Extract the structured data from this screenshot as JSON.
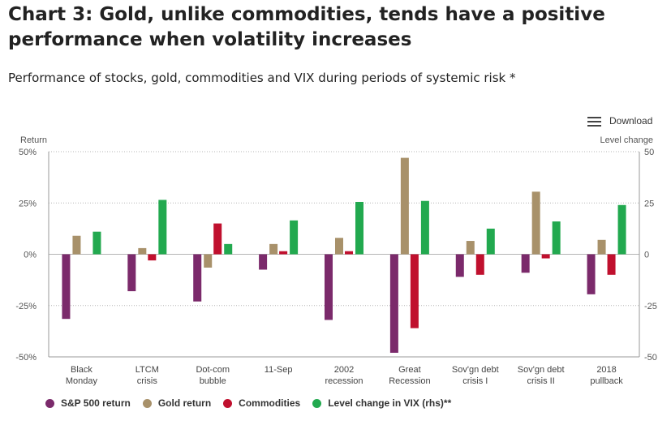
{
  "header": {
    "title": "Chart 3: Gold, unlike commodities, tends have a positive performance when volatility increases",
    "subtitle": "Performance of stocks, gold, commodities and VIX during periods of systemic risk *"
  },
  "toolbar": {
    "download_label": "Download",
    "download_icon": "menu-icon"
  },
  "chart_data": {
    "type": "bar",
    "title": "Chart 3: Gold, unlike commodities, tends have a positive performance when volatility increases",
    "subtitle": "Performance of stocks, gold, commodities and VIX during periods of systemic risk *",
    "ylabel_left": "Return",
    "ylabel_right": "Level change",
    "ylim_left": [
      -50,
      50
    ],
    "ylim_right": [
      -50,
      50
    ],
    "yticks_left": [
      "50%",
      "25%",
      "0%",
      "-25%",
      "-50%"
    ],
    "yticks_right": [
      "50",
      "25",
      "0",
      "-25",
      "-50"
    ],
    "ytick_values": [
      50,
      25,
      0,
      -25,
      -50
    ],
    "grid": true,
    "legend_position": "bottom",
    "categories": [
      [
        "Black",
        "Monday"
      ],
      [
        "LTCM",
        "crisis"
      ],
      [
        "Dot-com",
        "bubble"
      ],
      [
        "11-Sep"
      ],
      [
        "2002",
        "recession"
      ],
      [
        "Great",
        "Recession"
      ],
      [
        "Sov'gn debt",
        "crisis I"
      ],
      [
        "Sov'gn debt",
        "crisis II"
      ],
      [
        "2018",
        "pullback"
      ]
    ],
    "series": [
      {
        "name": "S&P 500 return",
        "color": "#7b2a6b",
        "axis": "left",
        "values": [
          -31.5,
          -18,
          -23,
          -7.5,
          -32,
          -48,
          -11,
          -9,
          -19.5
        ]
      },
      {
        "name": "Gold return",
        "color": "#a8916a",
        "axis": "left",
        "values": [
          9,
          3,
          -6.5,
          5,
          8,
          47,
          6.5,
          30.5,
          7
        ]
      },
      {
        "name": "Commodities",
        "color": "#c0102e",
        "axis": "left",
        "values": [
          0,
          -3,
          15,
          1.5,
          1.5,
          -36,
          -10,
          -2,
          -10
        ]
      },
      {
        "name": "Level change in VIX (rhs)**",
        "color": "#22a94f",
        "axis": "right",
        "values": [
          11,
          26.5,
          5,
          16.5,
          25.5,
          26,
          12.5,
          16,
          24
        ]
      }
    ]
  }
}
